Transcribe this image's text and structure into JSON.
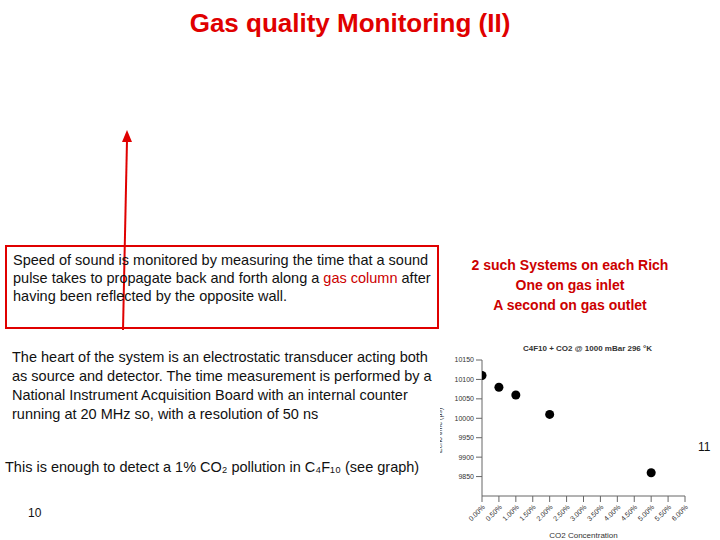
{
  "title": "Gas quality Monitoring (II)",
  "box": {
    "segments": [
      {
        "text": "Speed of sound is monitored by measuring the time that a sound pulse takes to propagate back and forth along a "
      },
      {
        "text": "gas column",
        "color": "#cc0000"
      },
      {
        "text": " after having been reflected by the opposite wall."
      }
    ]
  },
  "right_note": {
    "lines": [
      "2 such Systems on each Rich",
      "One on gas inlet",
      "A second on gas outlet"
    ],
    "color": "#cc0000"
  },
  "paragraph": "The heart of the system is an electrostatic transducer acting both as source and detector. The time measurement is performed by a National Instrument Acquisition Board with an internal counter running at 20 MHz so, with a resolution of 50 ns",
  "conclusion": "This is enough to detect a 1% CO₂ pollution in C₄F₁₀ (see graph)",
  "page_numbers": [
    "10",
    "11"
  ],
  "chart_data": {
    "type": "scatter",
    "title": "C4F10 + CO2 @ 1000 mBar 296 °K",
    "x_label": "CO2 Concentration",
    "y_label": "Echo time (µs)",
    "x": [
      0,
      0.5,
      1.0,
      2.0,
      5.0
    ],
    "values": [
      10110,
      10080,
      10060,
      10010,
      9860
    ],
    "color": "#000000",
    "marker": "circle",
    "xlim": [
      0,
      6
    ],
    "xticks": [
      {
        "value": 0,
        "label": "0.00%"
      },
      {
        "value": 0.5,
        "label": "0.50%"
      },
      {
        "value": 1,
        "label": "1.00%"
      },
      {
        "value": 1.5,
        "label": "1.50%"
      },
      {
        "value": 2,
        "label": "2.00%"
      },
      {
        "value": 2.5,
        "label": "2.50%"
      },
      {
        "value": 3,
        "label": "3.00%"
      },
      {
        "value": 3.5,
        "label": "3.50%"
      },
      {
        "value": 4,
        "label": "4.00%"
      },
      {
        "value": 4.5,
        "label": "4.50%"
      },
      {
        "value": 5,
        "label": "5.00%"
      },
      {
        "value": 5.5,
        "label": "5.50%"
      },
      {
        "value": 6,
        "label": "6.00%"
      }
    ],
    "ylim": [
      9800,
      10150
    ],
    "yticks": [
      9850,
      9900,
      9950,
      10000,
      10050,
      10100,
      10150
    ],
    "grid": false
  }
}
